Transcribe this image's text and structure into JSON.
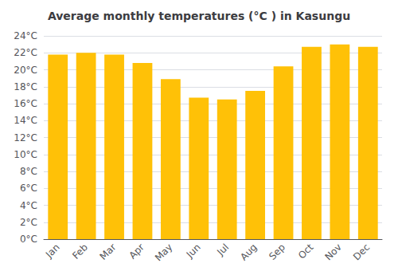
{
  "chart_data": {
    "type": "bar",
    "title": "Average monthly temperatures (°C ) in Kasungu",
    "categories": [
      "Jan",
      "Feb",
      "Mar",
      "Apr",
      "May",
      "Jun",
      "Jul",
      "Aug",
      "Sep",
      "Oct",
      "Nov",
      "Dec"
    ],
    "values": [
      21.8,
      22.0,
      21.8,
      20.8,
      18.9,
      16.7,
      16.5,
      17.5,
      20.4,
      22.7,
      23.0,
      22.7
    ],
    "color": "#FFC107",
    "ylim": [
      0,
      24
    ],
    "yticks": [
      {
        "value": 0,
        "label": "0°C"
      },
      {
        "value": 2,
        "label": "2°C"
      },
      {
        "value": 4,
        "label": "4°C"
      },
      {
        "value": 6,
        "label": "6°C"
      },
      {
        "value": 8,
        "label": "8°C"
      },
      {
        "value": 10,
        "label": "10°C"
      },
      {
        "value": 12,
        "label": "12°C"
      },
      {
        "value": 14,
        "label": "14°C"
      },
      {
        "value": 16,
        "label": "16°C"
      },
      {
        "value": 18,
        "label": "18°C"
      },
      {
        "value": 20,
        "label": "20°C"
      },
      {
        "value": 22,
        "label": "22°C"
      },
      {
        "value": 24,
        "label": "24°C"
      }
    ],
    "grid": true
  }
}
